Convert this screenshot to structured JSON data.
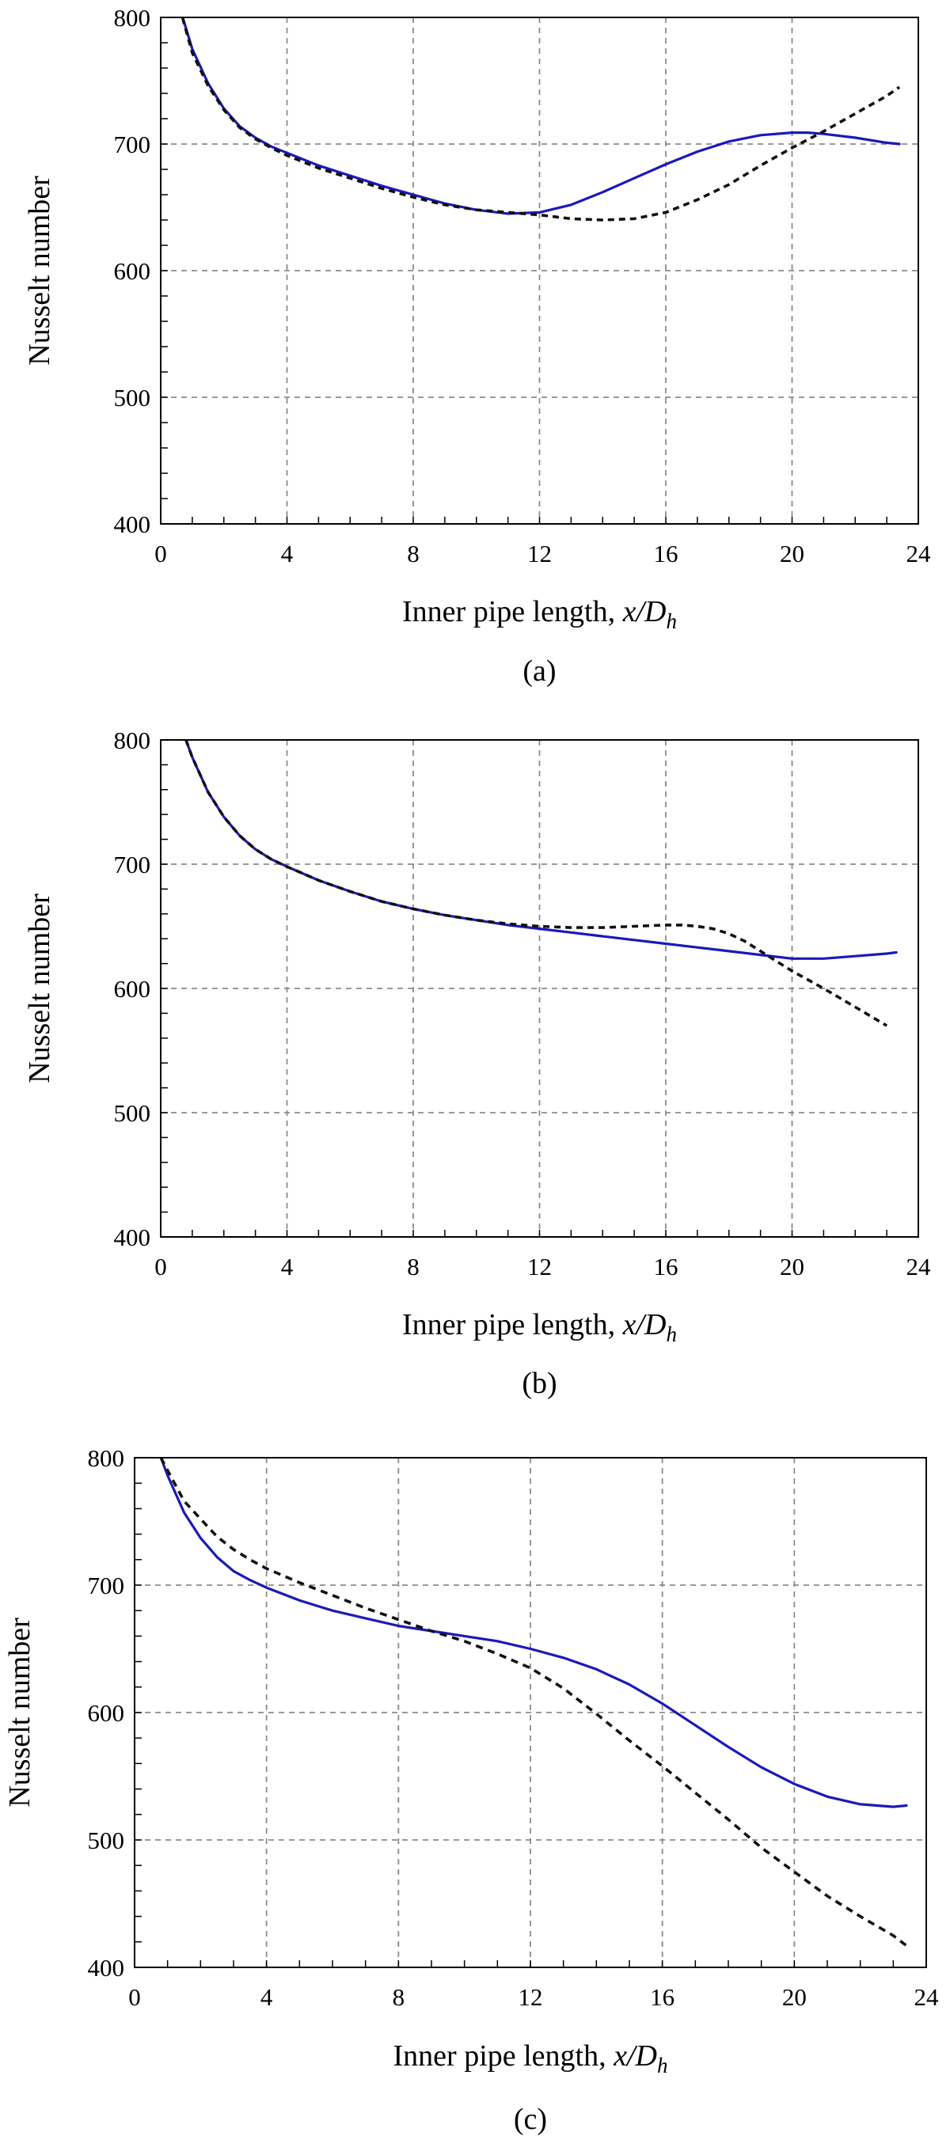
{
  "chart_data": [
    {
      "type": "line",
      "panel_label": "(a)",
      "xlabel": {
        "text": "Inner pipe length, ",
        "var": "x/D",
        "sub": "h"
      },
      "ylabel": "Nusselt number",
      "xlim": [
        0,
        24
      ],
      "ylim": [
        400,
        800
      ],
      "xticks": [
        "0",
        "4",
        "8",
        "12",
        "16",
        "20",
        "24"
      ],
      "yticks": [
        "400",
        "500",
        "600",
        "700",
        "800"
      ],
      "grid": true,
      "series": [
        {
          "name": "solid",
          "color": "#1a1ab8",
          "dash": "none",
          "x": [
            0.6,
            1,
            1.5,
            2,
            2.5,
            3,
            3.5,
            4,
            5,
            6,
            7,
            8,
            9,
            10,
            11,
            12,
            13,
            14,
            15,
            16,
            17,
            18,
            19,
            20,
            20.5,
            21,
            22,
            23,
            23.4
          ],
          "y": [
            808,
            775,
            748,
            728,
            714,
            705,
            698,
            693,
            683,
            675,
            667,
            660,
            653,
            648,
            645,
            646,
            652,
            662,
            673,
            684,
            694,
            702,
            707,
            709,
            709,
            708,
            705,
            701,
            700
          ]
        },
        {
          "name": "dashed",
          "color": "#111111",
          "dash": "8,6",
          "x": [
            0.6,
            1,
            1.5,
            2,
            2.5,
            3,
            3.5,
            4,
            5,
            6,
            7,
            8,
            9,
            10,
            11,
            12,
            13,
            14,
            15,
            16,
            17,
            18,
            19,
            20,
            21,
            22,
            23,
            23.4
          ],
          "y": [
            808,
            772,
            746,
            727,
            713,
            704,
            697,
            691,
            681,
            673,
            665,
            658,
            652,
            648,
            646,
            644,
            641,
            640,
            641,
            646,
            656,
            668,
            683,
            697,
            710,
            724,
            738,
            745
          ]
        }
      ]
    },
    {
      "type": "line",
      "panel_label": "(b)",
      "xlabel": {
        "text": "Inner pipe length, ",
        "var": "x/D",
        "sub": "h"
      },
      "ylabel": "Nusselt number",
      "xlim": [
        0,
        24
      ],
      "ylim": [
        400,
        800
      ],
      "xticks": [
        "0",
        "4",
        "8",
        "12",
        "16",
        "20",
        "24"
      ],
      "yticks": [
        "400",
        "500",
        "600",
        "700",
        "800"
      ],
      "grid": true,
      "series": [
        {
          "name": "solid",
          "color": "#1a1ab8",
          "dash": "none",
          "x": [
            0.8,
            1,
            1.5,
            2,
            2.5,
            3,
            3.5,
            4,
            5,
            6,
            7,
            8,
            9,
            10,
            11,
            12,
            13,
            14,
            15,
            16,
            17,
            18,
            19,
            20,
            21,
            22,
            23,
            23.3
          ],
          "y": [
            800,
            786,
            758,
            738,
            723,
            712,
            704,
            698,
            687,
            678,
            670,
            664,
            659,
            655,
            651,
            648,
            645,
            642,
            639,
            636,
            633,
            630,
            627,
            624,
            624,
            626,
            628,
            629
          ]
        },
        {
          "name": "dashed",
          "color": "#111111",
          "dash": "8,6",
          "x": [
            0.8,
            1,
            1.5,
            2,
            2.5,
            3,
            3.5,
            4,
            5,
            6,
            7,
            8,
            9,
            10,
            11,
            12,
            13,
            14,
            15,
            16,
            16.5,
            17,
            17.5,
            18,
            18.5,
            19,
            19.5,
            20,
            21,
            22,
            23
          ],
          "y": [
            800,
            786,
            758,
            738,
            723,
            712,
            704,
            698,
            687,
            678,
            670,
            664,
            659,
            655,
            652,
            650,
            649,
            649,
            650,
            651,
            651,
            650,
            648,
            644,
            638,
            630,
            622,
            614,
            600,
            585,
            570
          ]
        }
      ]
    },
    {
      "type": "line",
      "panel_label": "(c)",
      "xlabel": {
        "text": "Inner pipe length, ",
        "var": "x/D",
        "sub": "h"
      },
      "ylabel": "Nusselt number",
      "xlim": [
        0,
        24
      ],
      "ylim": [
        400,
        800
      ],
      "xticks": [
        "0",
        "4",
        "8",
        "12",
        "16",
        "20",
        "24"
      ],
      "yticks": [
        "400",
        "500",
        "600",
        "700",
        "800"
      ],
      "grid": true,
      "series": [
        {
          "name": "solid",
          "color": "#1a1ab8",
          "dash": "none",
          "x": [
            0.8,
            1,
            1.5,
            2,
            2.5,
            3,
            3.5,
            4,
            5,
            6,
            7,
            8,
            9,
            10,
            11,
            12,
            13,
            14,
            15,
            16,
            17,
            18,
            19,
            20,
            21,
            22,
            23,
            23.4
          ],
          "y": [
            800,
            786,
            757,
            737,
            722,
            711,
            704,
            698,
            688,
            680,
            674,
            668,
            664,
            660,
            656,
            650,
            643,
            634,
            622,
            607,
            590,
            573,
            557,
            544,
            534,
            528,
            526,
            527
          ]
        },
        {
          "name": "dashed",
          "color": "#111111",
          "dash": "9,7",
          "x": [
            0.8,
            1,
            1.5,
            2,
            2.5,
            3,
            3.5,
            4,
            5,
            6,
            7,
            8,
            9,
            10,
            11,
            12,
            13,
            14,
            15,
            16,
            17,
            18,
            19,
            20,
            21,
            22,
            23,
            23.4
          ],
          "y": [
            800,
            790,
            766,
            752,
            738,
            728,
            720,
            713,
            702,
            692,
            682,
            673,
            664,
            656,
            646,
            635,
            619,
            599,
            578,
            558,
            537,
            516,
            494,
            475,
            456,
            440,
            425,
            417
          ]
        }
      ]
    }
  ]
}
